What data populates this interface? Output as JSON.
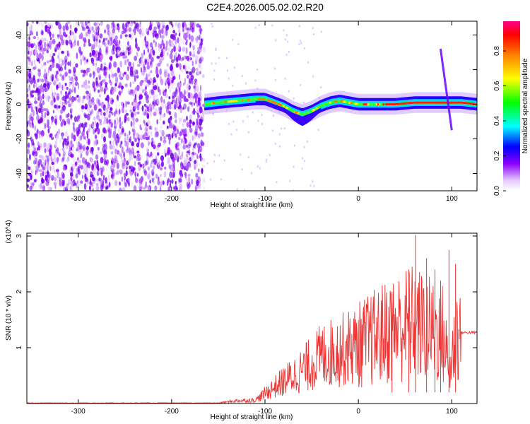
{
  "title": "C2E4.2026.005.02.02.R20",
  "chart_data": [
    {
      "type": "heatmap",
      "xlabel": "Height of straight line (km)",
      "ylabel": "Frequency (Hz)",
      "xlim": [
        -355,
        127
      ],
      "ylim": [
        -50,
        48
      ],
      "xticks": [
        -300,
        -200,
        -100,
        0,
        100
      ],
      "yticks": [
        -40,
        -20,
        0,
        20,
        40
      ],
      "colorbar": {
        "label": "Normalized spectral amplitude",
        "range": [
          0,
          0.97
        ],
        "ticks": [
          0.0,
          0.2,
          0.4,
          0.6,
          0.8
        ],
        "colormap": [
          "#ffffff",
          "#e6ccff",
          "#8b00ff",
          "#0000ff",
          "#00ffff",
          "#00ff00",
          "#ffff00",
          "#ff8000",
          "#ff0000",
          "#ff0088"
        ]
      },
      "ridge": {
        "x": [
          -165,
          -150,
          -130,
          -110,
          -100,
          -90,
          -80,
          -70,
          -60,
          -50,
          -40,
          -30,
          -20,
          -10,
          0,
          20,
          40,
          60,
          80,
          90,
          95,
          100,
          110,
          127
        ],
        "y": [
          0,
          1,
          2,
          3,
          3,
          1,
          -1,
          -4,
          -6,
          -4,
          -1,
          1,
          2,
          1,
          0,
          0,
          0,
          1,
          1,
          1,
          1,
          1,
          1,
          0
        ]
      },
      "noise_region_x": [
        -355,
        -165
      ],
      "streak": {
        "x": [
          88,
          100
        ],
        "y": [
          32,
          -15
        ]
      }
    },
    {
      "type": "line",
      "xlabel": "Height of straight line (km)",
      "ylabel": "SNR (10 * v/v)",
      "yscale_label": "(x10^4)",
      "xlim": [
        -355,
        127
      ],
      "ylim": [
        0,
        3.05
      ],
      "xticks": [
        -300,
        -200,
        -100,
        0,
        100
      ],
      "yticks": [
        1,
        2,
        3
      ],
      "color": "#ee3333",
      "envelope": {
        "x": [
          -355,
          -150,
          -130,
          -110,
          -100,
          -80,
          -60,
          -40,
          -20,
          0,
          20,
          40,
          50,
          60,
          70,
          80,
          90,
          98,
          105,
          127
        ],
        "y": [
          0.01,
          0.01,
          0.05,
          0.06,
          0.18,
          0.4,
          0.6,
          0.85,
          0.95,
          1.05,
          1.2,
          1.35,
          1.4,
          1.45,
          1.35,
          1.3,
          1.25,
          0.6,
          1.27,
          1.27
        ]
      },
      "spikes": [
        {
          "x": 61,
          "y": 3.02
        },
        {
          "x": 73,
          "y": 2.6
        },
        {
          "x": 82,
          "y": 2.4
        },
        {
          "x": 97,
          "y": 2.75
        },
        {
          "x": 104,
          "y": 2.5
        },
        {
          "x": 36,
          "y": 2.0
        },
        {
          "x": 54,
          "y": 2.4
        },
        {
          "x": 88,
          "y": 2.2
        }
      ]
    }
  ]
}
